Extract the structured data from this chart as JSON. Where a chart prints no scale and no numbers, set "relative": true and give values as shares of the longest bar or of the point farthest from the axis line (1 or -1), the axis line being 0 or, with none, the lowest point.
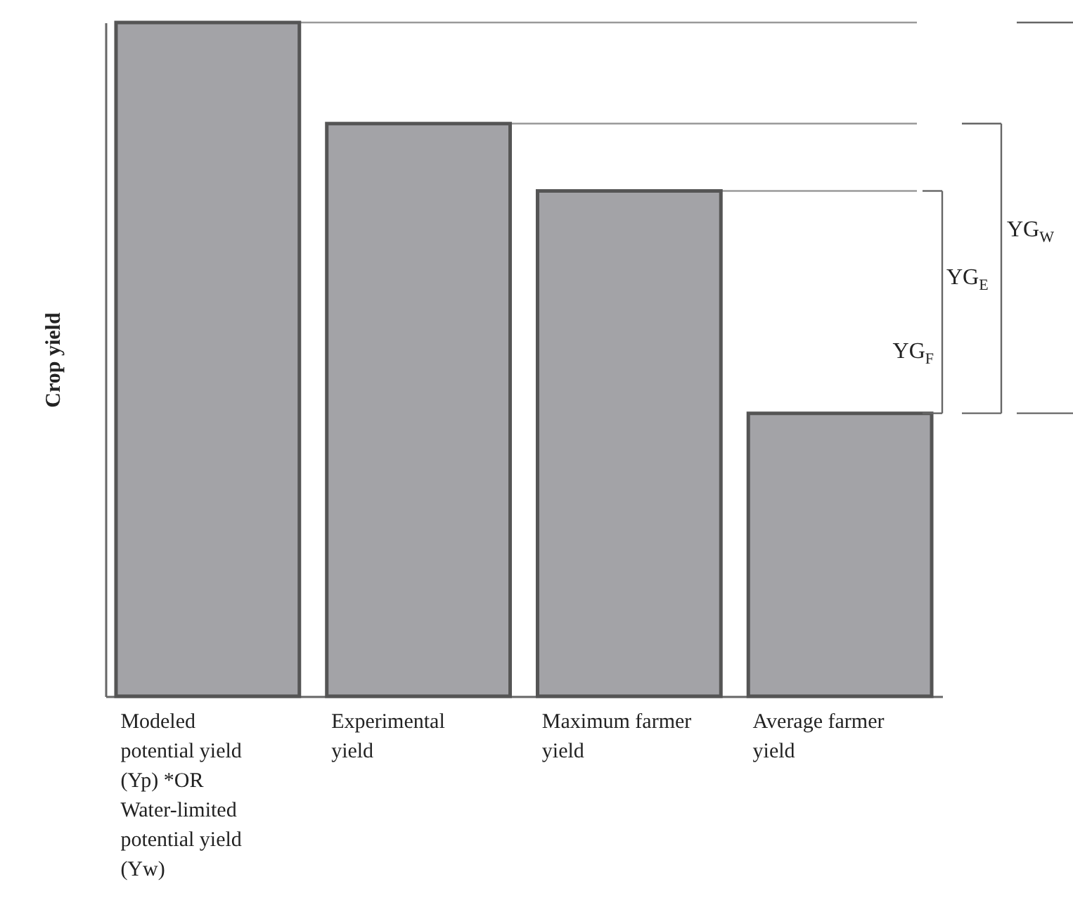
{
  "chart_data": {
    "type": "bar",
    "relative": true,
    "ylabel": "Crop yield",
    "categories": [
      "Modeled potential yield (Yp) *OR Water-limited potential yield (Yw)",
      "Experimental yield",
      "Maximum farmer yield",
      "Average farmer yield"
    ],
    "values": [
      1,
      0.85,
      0.75,
      0.42
    ],
    "color": "#a3a3a7",
    "ref_lines": [
      {
        "axis": "y",
        "value": 1
      },
      {
        "axis": "y",
        "value": 0.85
      },
      {
        "axis": "y",
        "value": 0.75
      }
    ],
    "annotations": [
      "YG$_{F}$",
      "YG$_{E}$",
      "YG$_{W}$"
    ]
  }
}
